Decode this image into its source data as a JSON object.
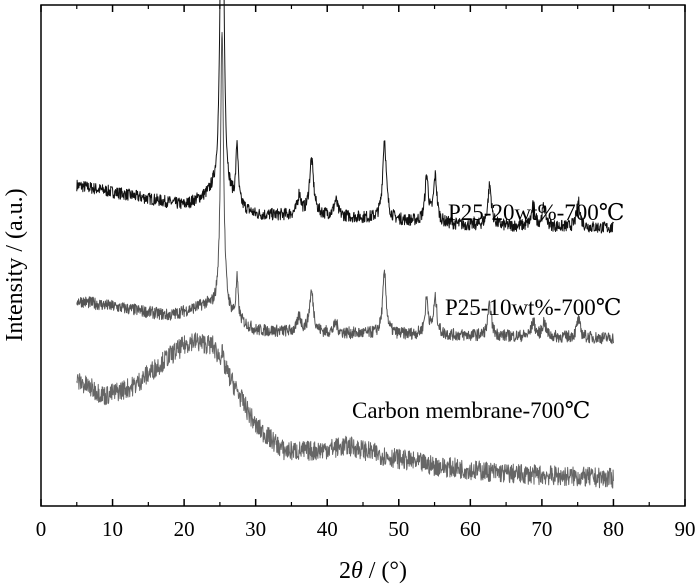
{
  "chart_data": {
    "type": "line",
    "title": "",
    "xlabel_prefix": "2",
    "xlabel_var": "θ",
    "xlabel_suffix": " / (°)",
    "ylabel": "Intensity / (a.u.)",
    "xlim": [
      0,
      90
    ],
    "x_ticks": [
      0,
      10,
      20,
      30,
      40,
      50,
      60,
      70,
      80,
      90
    ],
    "y_ticks_shown": false,
    "grid": false,
    "legend": "none",
    "x_range_measured": [
      5,
      80
    ],
    "peak_positions_2theta": [
      25.3,
      27.4,
      36.1,
      37.8,
      41.2,
      48.0,
      53.9,
      55.1,
      62.7,
      68.8,
      70.3,
      75.1
    ],
    "series": [
      {
        "name": "P25-20wt%-700℃",
        "color": "#111111",
        "baseline": [
          [
            5,
            0.64
          ],
          [
            20,
            0.6
          ],
          [
            24,
            0.62
          ],
          [
            30,
            0.58
          ],
          [
            40,
            0.58
          ],
          [
            60,
            0.56
          ],
          [
            80,
            0.555
          ]
        ],
        "peaks": [
          [
            25.3,
            0.93,
            0.25
          ],
          [
            27.4,
            0.12,
            0.18
          ],
          [
            36.1,
            0.04,
            0.3
          ],
          [
            37.8,
            0.11,
            0.35
          ],
          [
            41.2,
            0.03,
            0.3
          ],
          [
            48.0,
            0.16,
            0.3
          ],
          [
            53.9,
            0.09,
            0.28
          ],
          [
            55.1,
            0.09,
            0.28
          ],
          [
            62.7,
            0.08,
            0.3
          ],
          [
            68.8,
            0.04,
            0.3
          ],
          [
            70.3,
            0.04,
            0.3
          ],
          [
            75.1,
            0.05,
            0.3
          ]
        ],
        "noise": 0.012
      },
      {
        "name": "P25-10wt%-700℃",
        "color": "#555555",
        "baseline": [
          [
            5,
            0.41
          ],
          [
            18,
            0.38
          ],
          [
            23,
            0.4
          ],
          [
            30,
            0.35
          ],
          [
            40,
            0.345
          ],
          [
            60,
            0.34
          ],
          [
            80,
            0.335
          ]
        ],
        "peaks": [
          [
            25.3,
            0.57,
            0.25
          ],
          [
            27.4,
            0.08,
            0.18
          ],
          [
            36.1,
            0.03,
            0.3
          ],
          [
            37.8,
            0.08,
            0.35
          ],
          [
            41.2,
            0.02,
            0.3
          ],
          [
            48.0,
            0.12,
            0.3
          ],
          [
            53.9,
            0.07,
            0.28
          ],
          [
            55.1,
            0.07,
            0.28
          ],
          [
            62.7,
            0.06,
            0.3
          ],
          [
            68.8,
            0.03,
            0.3
          ],
          [
            70.3,
            0.03,
            0.3
          ],
          [
            75.1,
            0.035,
            0.3
          ]
        ],
        "noise": 0.012
      },
      {
        "name": "Carbon membrane-700℃",
        "color": "#666666",
        "baseline": [
          [
            5,
            0.25
          ],
          [
            9,
            0.22
          ],
          [
            13,
            0.24
          ],
          [
            18,
            0.3
          ],
          [
            21,
            0.33
          ],
          [
            24,
            0.32
          ],
          [
            27,
            0.24
          ],
          [
            30,
            0.16
          ],
          [
            34,
            0.11
          ],
          [
            38,
            0.11
          ],
          [
            43,
            0.12
          ],
          [
            48,
            0.1
          ],
          [
            55,
            0.08
          ],
          [
            65,
            0.065
          ],
          [
            80,
            0.055
          ]
        ],
        "peaks": [
          [
            25.3,
            0.02,
            0.2
          ]
        ],
        "noise": 0.02
      }
    ]
  }
}
